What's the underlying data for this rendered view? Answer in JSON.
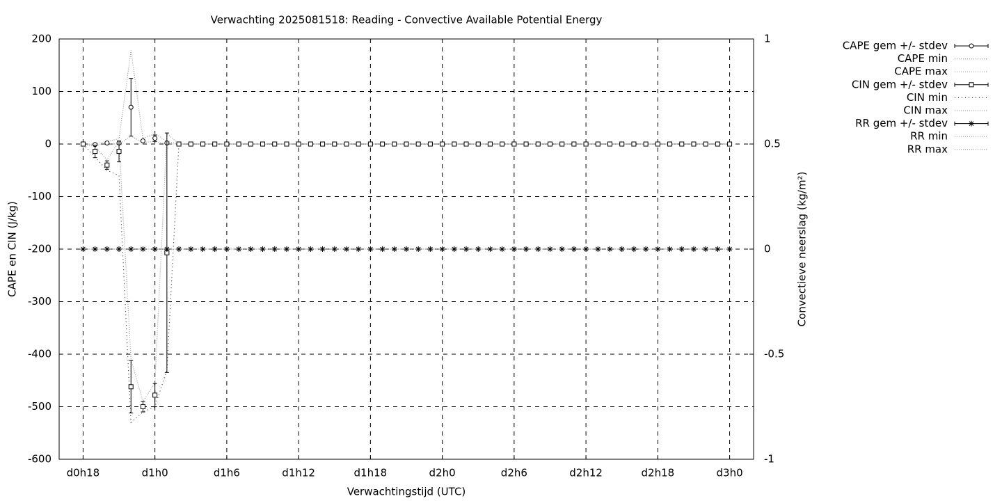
{
  "chart_data": {
    "type": "errorbar-line",
    "title": "Verwachting 2025081518: Reading - Convective Available Potential Energy",
    "x_label": "Verwachtingstijd (UTC)",
    "y_label": "CAPE en CIN (J/kg)",
    "y2_label": "Convectieve neerslag (kg/m²)",
    "x": [
      0,
      1,
      2,
      3,
      4,
      5,
      6,
      7,
      8,
      9,
      10,
      11,
      12,
      13,
      14,
      15,
      16,
      17,
      18,
      19,
      20,
      21,
      22,
      23,
      24,
      25,
      26,
      27,
      28,
      29,
      30,
      31,
      32,
      33,
      34,
      35,
      36,
      37,
      38,
      39,
      40,
      41,
      42,
      43,
      44,
      45,
      46,
      47,
      48,
      49,
      50,
      51,
      52,
      53,
      54
    ],
    "xlim": [
      -2,
      56
    ],
    "xticks": [
      {
        "value": 0,
        "label": "d0h18"
      },
      {
        "value": 6,
        "label": "d1h0"
      },
      {
        "value": 12,
        "label": "d1h6"
      },
      {
        "value": 18,
        "label": "d1h12"
      },
      {
        "value": 24,
        "label": "d1h18"
      },
      {
        "value": 30,
        "label": "d2h0"
      },
      {
        "value": 36,
        "label": "d2h6"
      },
      {
        "value": 42,
        "label": "d2h12"
      },
      {
        "value": 48,
        "label": "d2h18"
      },
      {
        "value": 54,
        "label": "d3h0"
      }
    ],
    "ylim": [
      -600,
      200
    ],
    "yticks": [
      200,
      100,
      0,
      -100,
      -200,
      -300,
      -400,
      -500,
      -600
    ],
    "y2lim": [
      -1,
      1
    ],
    "y2ticks": [
      1,
      0.5,
      0,
      -0.5,
      -1
    ],
    "grid": true,
    "series": [
      {
        "name": "CAPE gem +/- stdev",
        "color": "#000000",
        "marker": "circle",
        "values": [
          0,
          -1,
          2,
          2,
          70,
          6,
          11,
          2,
          0,
          0,
          0,
          0,
          0,
          0,
          0,
          0,
          0,
          0,
          0,
          0,
          0,
          0,
          0,
          0,
          0,
          0,
          0,
          0,
          0,
          0,
          0,
          0,
          0,
          0,
          0,
          0,
          0,
          0,
          0,
          0,
          0,
          0,
          0,
          0,
          0,
          0,
          0,
          0,
          0,
          0,
          0,
          0,
          0,
          0,
          0
        ],
        "errors": [
          0,
          0,
          0,
          0,
          55,
          0,
          6,
          0,
          0,
          0,
          0,
          0,
          0,
          0,
          0,
          0,
          0,
          0,
          0,
          0,
          0,
          0,
          0,
          0,
          0,
          0,
          0,
          0,
          0,
          0,
          0,
          0,
          0,
          0,
          0,
          0,
          0,
          0,
          0,
          0,
          0,
          0,
          0,
          0,
          0,
          0,
          0,
          0,
          0,
          0,
          0,
          0,
          0,
          0,
          0
        ]
      },
      {
        "name": "CAPE min",
        "color": "#999999",
        "dash": "1,2",
        "values": [
          0,
          -2,
          0,
          0,
          15,
          3,
          5,
          0,
          0,
          0,
          0,
          0,
          0,
          0,
          0,
          0,
          0,
          0,
          0,
          0,
          0,
          0,
          0,
          0,
          0,
          0,
          0,
          0,
          0,
          0,
          0,
          0,
          0,
          0,
          0,
          0,
          0,
          0,
          0,
          0,
          0,
          0,
          0,
          0,
          0,
          0,
          0,
          0,
          0,
          0,
          0,
          0,
          0,
          0,
          0
        ]
      },
      {
        "name": "CAPE max",
        "color": "#999999",
        "dash": "1,2",
        "values": [
          0,
          0,
          5,
          10,
          178,
          10,
          20,
          5,
          0,
          0,
          0,
          0,
          0,
          0,
          0,
          0,
          0,
          0,
          0,
          0,
          0,
          0,
          0,
          0,
          0,
          0,
          0,
          0,
          0,
          0,
          0,
          0,
          0,
          0,
          0,
          0,
          0,
          0,
          0,
          0,
          0,
          0,
          0,
          0,
          0,
          0,
          0,
          0,
          0,
          0,
          0,
          0,
          0,
          0,
          0
        ]
      },
      {
        "name": "CIN gem +/- stdev",
        "color": "#000000",
        "marker": "square",
        "values": [
          0,
          -14,
          -40,
          -14,
          -462,
          -500,
          -478,
          -207,
          0,
          0,
          0,
          0,
          0,
          0,
          0,
          0,
          0,
          0,
          0,
          0,
          0,
          0,
          0,
          0,
          0,
          0,
          0,
          0,
          0,
          0,
          0,
          0,
          0,
          0,
          0,
          0,
          0,
          0,
          0,
          0,
          0,
          0,
          0,
          0,
          0,
          0,
          0,
          0,
          0,
          0,
          0,
          0,
          0,
          0,
          0
        ],
        "errors": [
          0,
          12,
          8,
          20,
          50,
          10,
          22,
          228,
          0,
          0,
          0,
          0,
          0,
          0,
          0,
          0,
          0,
          0,
          0,
          0,
          0,
          0,
          0,
          0,
          0,
          0,
          0,
          0,
          0,
          0,
          0,
          0,
          0,
          0,
          0,
          0,
          0,
          0,
          0,
          0,
          0,
          0,
          0,
          0,
          0,
          0,
          0,
          0,
          0,
          0,
          0,
          0,
          0,
          0,
          0
        ]
      },
      {
        "name": "CIN min",
        "color": "#333333",
        "dash": "1,4",
        "values": [
          0,
          -25,
          -50,
          -60,
          -530,
          -510,
          -500,
          -430,
          0,
          0,
          0,
          0,
          0,
          0,
          0,
          0,
          0,
          0,
          0,
          0,
          0,
          0,
          0,
          0,
          0,
          0,
          0,
          0,
          0,
          0,
          0,
          0,
          0,
          0,
          0,
          0,
          0,
          0,
          0,
          0,
          0,
          0,
          0,
          0,
          0,
          0,
          0,
          0,
          0,
          0,
          0,
          0,
          0,
          0,
          0
        ]
      },
      {
        "name": "CIN max",
        "color": "#999999",
        "dash": "1,2",
        "values": [
          0,
          -5,
          -30,
          5,
          -410,
          -490,
          -455,
          20,
          0,
          0,
          0,
          0,
          0,
          0,
          0,
          0,
          0,
          0,
          0,
          0,
          0,
          0,
          0,
          0,
          0,
          0,
          0,
          0,
          0,
          0,
          0,
          0,
          0,
          0,
          0,
          0,
          0,
          0,
          0,
          0,
          0,
          0,
          0,
          0,
          0,
          0,
          0,
          0,
          0,
          0,
          0,
          0,
          0,
          0,
          0
        ]
      },
      {
        "name": "RR gem +/- stdev",
        "color": "#000000",
        "marker": "star",
        "axis": "y2",
        "values": [
          0,
          0,
          0,
          0,
          0,
          0,
          0,
          0,
          0,
          0,
          0,
          0,
          0,
          0,
          0,
          0,
          0,
          0,
          0,
          0,
          0,
          0,
          0,
          0,
          0,
          0,
          0,
          0,
          0,
          0,
          0,
          0,
          0,
          0,
          0,
          0,
          0,
          0,
          0,
          0,
          0,
          0,
          0,
          0,
          0,
          0,
          0,
          0,
          0,
          0,
          0,
          0,
          0,
          0,
          0
        ],
        "errors": [
          0,
          0,
          0,
          0,
          0,
          0,
          0,
          0,
          0,
          0,
          0,
          0,
          0,
          0,
          0,
          0,
          0,
          0,
          0,
          0,
          0,
          0,
          0,
          0,
          0,
          0,
          0,
          0,
          0,
          0,
          0,
          0,
          0,
          0,
          0,
          0,
          0,
          0,
          0,
          0,
          0,
          0,
          0,
          0,
          0,
          0,
          0,
          0,
          0,
          0,
          0,
          0,
          0,
          0,
          0
        ]
      },
      {
        "name": "RR min",
        "color": "#999999",
        "dash": "1,2",
        "axis": "y2",
        "values": [
          0,
          0,
          0,
          0,
          0,
          0,
          0,
          0,
          0,
          0,
          0,
          0,
          0,
          0,
          0,
          0,
          0,
          0,
          0,
          0,
          0,
          0,
          0,
          0,
          0,
          0,
          0,
          0,
          0,
          0,
          0,
          0,
          0,
          0,
          0,
          0,
          0,
          0,
          0,
          0,
          0,
          0,
          0,
          0,
          0,
          0,
          0,
          0,
          0,
          0,
          0,
          0,
          0,
          0,
          0
        ]
      },
      {
        "name": "RR max",
        "color": "#999999",
        "dash": "1,2",
        "axis": "y2",
        "values": [
          0,
          0,
          0,
          0,
          0,
          0,
          0,
          0,
          0,
          0,
          0,
          0,
          0,
          0,
          0,
          0,
          0,
          0,
          0,
          0,
          0,
          0,
          0,
          0,
          0,
          0,
          0,
          0,
          0,
          0,
          0,
          0,
          0,
          0,
          0,
          0,
          0,
          0,
          0,
          0,
          0,
          0,
          0,
          0,
          0,
          0,
          0,
          0,
          0,
          0,
          0,
          0,
          0,
          0,
          0
        ]
      }
    ]
  }
}
